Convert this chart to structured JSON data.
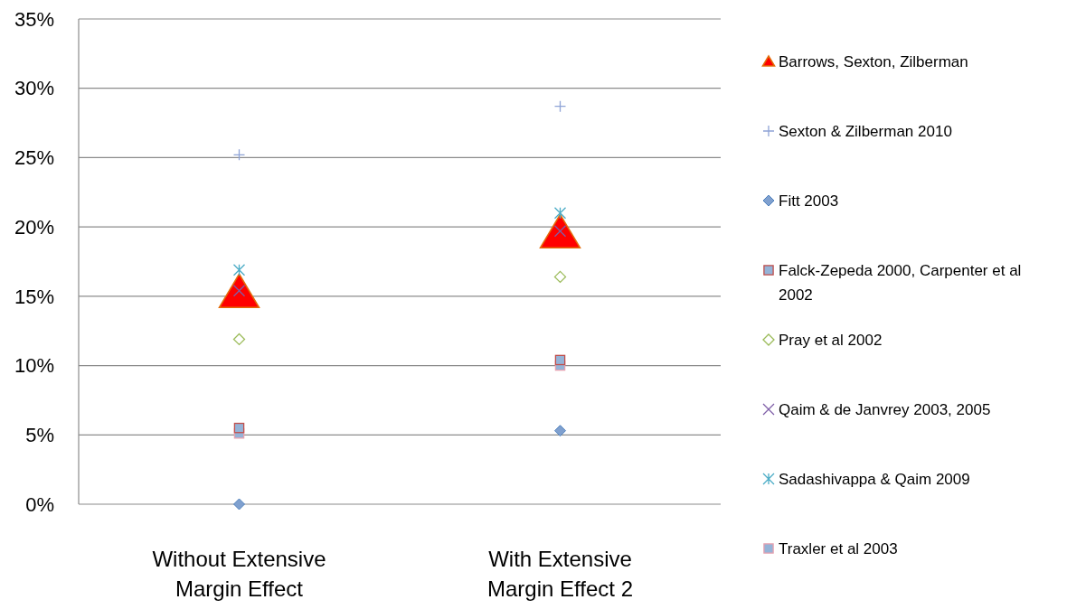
{
  "chart_data": {
    "type": "scatter",
    "categories": [
      "Without Extensive Margin Effect",
      "With Extensive Margin Effect 2"
    ],
    "series": [
      {
        "name": "Barrows, Sexton, Zilberman",
        "color": "#ff0000",
        "marker": "triangle",
        "values": [
          15.3,
          19.6
        ]
      },
      {
        "name": "Sexton & Zilberman 2010",
        "color": "#8ea3d6",
        "marker": "plus",
        "values": [
          25.2,
          28.7
        ]
      },
      {
        "name": "Fitt 2003",
        "color": "#4f81bd",
        "marker": "diamond",
        "values": [
          0,
          5.3
        ]
      },
      {
        "name": "Falck-Zepeda 2000, Carpenter et al 2002",
        "color": "#c0504d",
        "marker": "square",
        "values": [
          5.5,
          10.4
        ]
      },
      {
        "name": "Pray et al 2002",
        "color": "#9bbb59",
        "marker": "diamond-open",
        "values": [
          11.9,
          16.4
        ]
      },
      {
        "name": "Qaim & de Janvrey 2003, 2005",
        "color": "#7f5fa8",
        "marker": "x",
        "values": [
          15.4,
          19.7
        ]
      },
      {
        "name": "Sadashivappa & Qaim 2009",
        "color": "#4bacc6",
        "marker": "cross",
        "values": [
          16.9,
          21.0
        ]
      },
      {
        "name": "Traxler et al 2003",
        "color": "#e6a1b0",
        "marker": "square",
        "values": [
          5.1,
          10.0
        ]
      }
    ],
    "ylim": [
      0,
      35
    ],
    "yticks": [
      {
        "value": 0,
        "label": "0%"
      },
      {
        "value": 5,
        "label": "5%"
      },
      {
        "value": 10,
        "label": "10%"
      },
      {
        "value": 15,
        "label": "15%"
      },
      {
        "value": 20,
        "label": "20%"
      },
      {
        "value": 25,
        "label": "25%"
      },
      {
        "value": 30,
        "label": "30%"
      },
      {
        "value": 35,
        "label": "35%"
      }
    ],
    "grid": "y",
    "legend": "right"
  }
}
